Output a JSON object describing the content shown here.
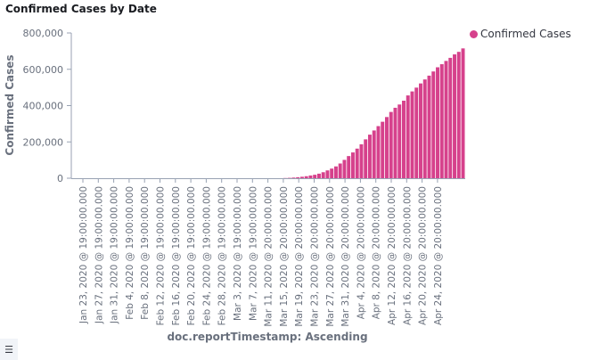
{
  "panel": {
    "title": "Confirmed Cases by Date",
    "legend_toggle_icon": "list-icon"
  },
  "colors": {
    "bar": "#d6418c",
    "axis": "#98a2b3",
    "tick_text": "#69707d",
    "label_text": "#69707d"
  },
  "chart_data": {
    "type": "bar",
    "xlabel": "doc.reportTimestamp: Ascending",
    "ylabel": "Confirmed Cases",
    "ylim": [
      0,
      800000
    ],
    "yticks": [
      0,
      200000,
      400000,
      600000,
      800000
    ],
    "ytick_labels": [
      "0",
      "200,000",
      "400,000",
      "600,000",
      "800,000"
    ],
    "legend_position": "top-right",
    "grid": false,
    "xtick_labels": [
      "Jan 23, 2020 @ 19:00:00.000",
      "Jan 27, 2020 @ 19:00:00.000",
      "Jan 31, 2020 @ 19:00:00.000",
      "Feb 4, 2020 @ 19:00:00.000",
      "Feb 8, 2020 @ 19:00:00.000",
      "Feb 12, 2020 @ 19:00:00.000",
      "Feb 16, 2020 @ 19:00:00.000",
      "Feb 20, 2020 @ 19:00:00.000",
      "Feb 24, 2020 @ 19:00:00.000",
      "Feb 28, 2020 @ 19:00:00.000",
      "Mar 3, 2020 @ 19:00:00.000",
      "Mar 7, 2020 @ 19:00:00.000",
      "Mar 11, 2020 @ 20:00:00.000",
      "Mar 15, 2020 @ 20:00:00.000",
      "Mar 19, 2020 @ 20:00:00.000",
      "Mar 23, 2020 @ 20:00:00.000",
      "Mar 27, 2020 @ 20:00:00.000",
      "Mar 31, 2020 @ 20:00:00.000",
      "Apr 4, 2020 @ 20:00:00.000",
      "Apr 8, 2020 @ 20:00:00.000",
      "Apr 12, 2020 @ 20:00:00.000",
      "Apr 16, 2020 @ 20:00:00.000",
      "Apr 20, 2020 @ 20:00:00.000",
      "Apr 24, 2020 @ 20:00:00.000"
    ],
    "series": [
      {
        "name": "Confirmed Cases",
        "values": [
          0,
          0,
          0,
          0,
          0,
          0,
          0,
          0,
          0,
          0,
          0,
          0,
          0,
          0,
          0,
          0,
          0,
          0,
          0,
          0,
          0,
          0,
          0,
          0,
          0,
          0,
          0,
          0,
          0,
          0,
          0,
          0,
          0,
          0,
          0,
          0,
          0,
          0,
          0,
          0,
          0,
          0,
          0,
          0,
          0,
          0,
          0,
          0,
          0,
          0,
          1000,
          2000,
          3500,
          5500,
          8000,
          11000,
          15000,
          19000,
          25000,
          33000,
          43000,
          53000,
          65000,
          81000,
          101000,
          122000,
          142000,
          163000,
          187000,
          214000,
          240000,
          263000,
          287000,
          311000,
          337000,
          365000,
          388000,
          406000,
          427000,
          456000,
          478000,
          499000,
          522000,
          544000,
          565000,
          588000,
          611000,
          628000,
          646000,
          663000,
          682000,
          696000,
          715000
        ]
      }
    ]
  }
}
